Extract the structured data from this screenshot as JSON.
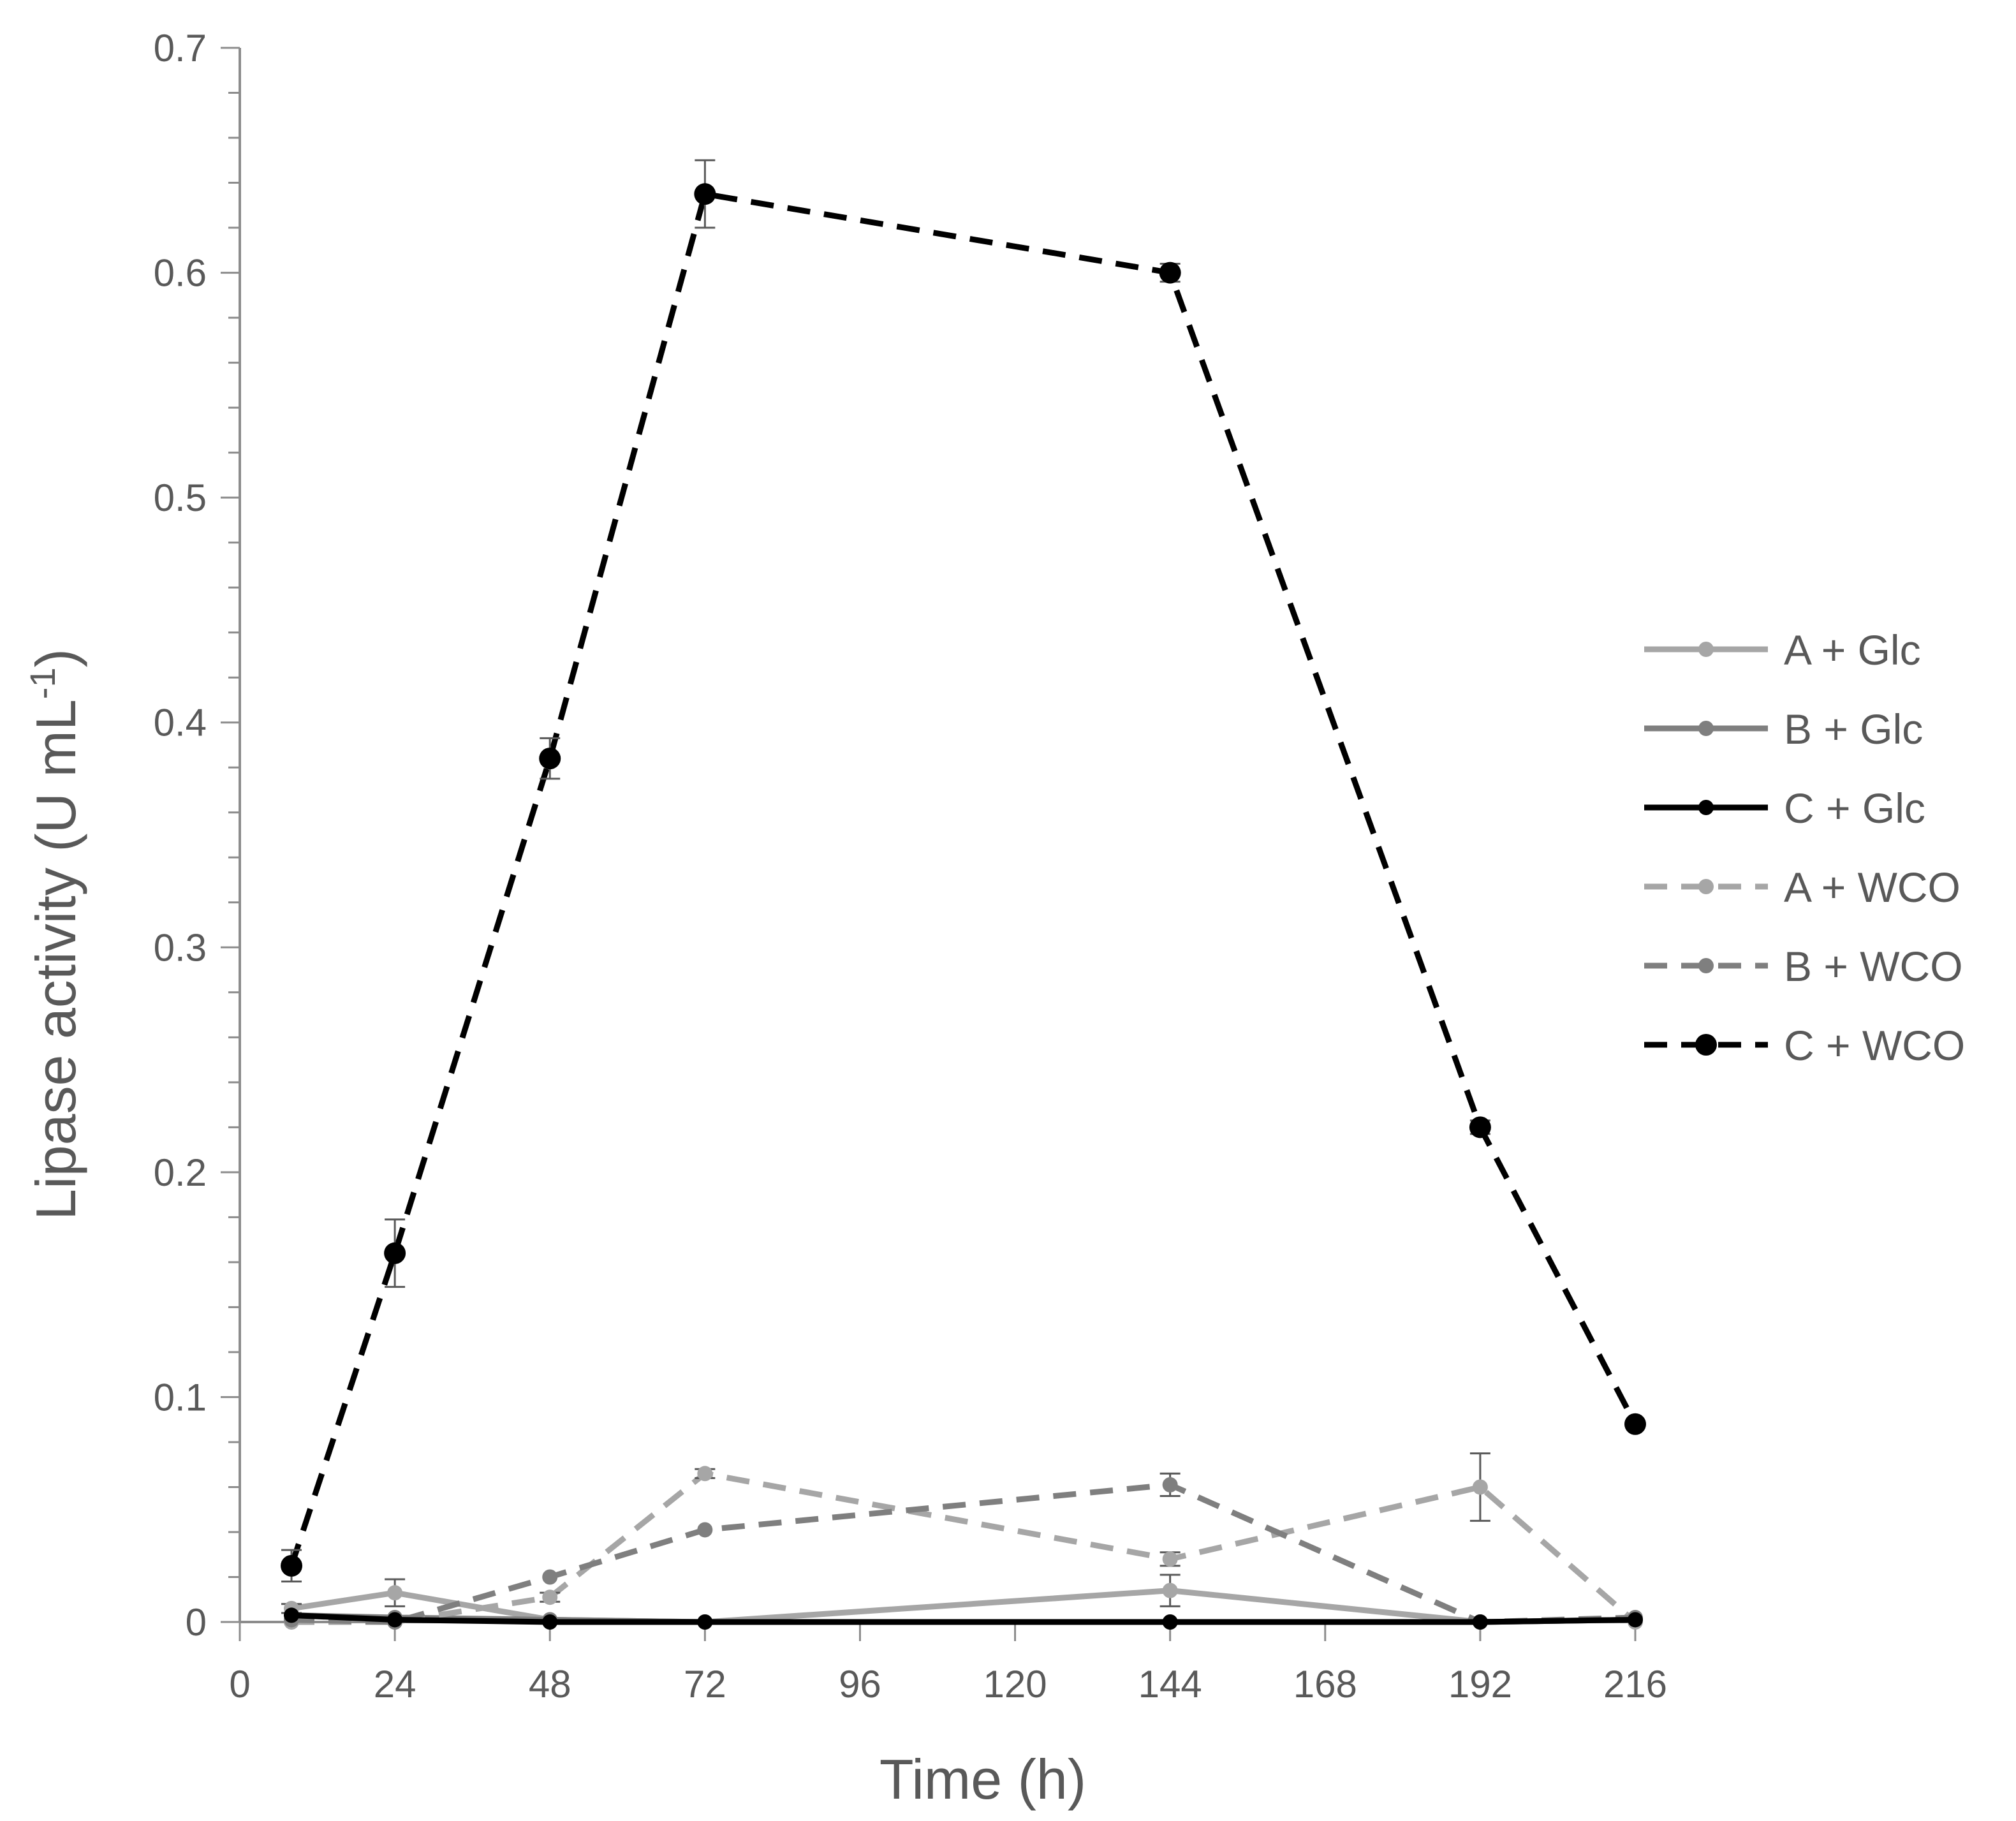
{
  "chart_data": {
    "type": "line",
    "title": "",
    "xlabel": "Time (h)",
    "ylabel": {
      "main": "Lipase activity (U mL",
      "sup": "-1",
      "close": ")"
    },
    "xlim": [
      0,
      216
    ],
    "ylim": [
      0,
      0.7
    ],
    "xticks": [
      "0",
      "24",
      "48",
      "72",
      "96",
      "120",
      "144",
      "168",
      "192",
      "216"
    ],
    "yticks": [
      "0",
      "0.1",
      "0.2",
      "0.3",
      "0.4",
      "0.5",
      "0.6",
      "0.7"
    ],
    "grid": false,
    "legend_position": "right",
    "x": [
      8,
      24,
      48,
      72,
      144,
      192,
      216
    ],
    "series": [
      {
        "name": "A + Glc",
        "color": "#a6a6a6",
        "dash": "solid",
        "marker": "small",
        "values": [
          0.006,
          0.013,
          0.001,
          0.0,
          0.014,
          0.0,
          0.001
        ],
        "errors": [
          0.002,
          0.006,
          0.0,
          0.0,
          0.007,
          0.0,
          0.0
        ]
      },
      {
        "name": "B + Glc",
        "color": "#7f7f7f",
        "dash": "solid",
        "marker": "small",
        "values": [
          0.003,
          0.002,
          0.001,
          0.0,
          0.0,
          0.0,
          0.001
        ],
        "errors": [
          0,
          0,
          0,
          0,
          0,
          0,
          0
        ]
      },
      {
        "name": "C + Glc",
        "color": "#000000",
        "dash": "solid",
        "marker": "small",
        "values": [
          0.003,
          0.001,
          0.0,
          0.0,
          0.0,
          0.0,
          0.001
        ],
        "errors": [
          0,
          0,
          0,
          0,
          0,
          0,
          0
        ]
      },
      {
        "name": "A + WCO",
        "color": "#a6a6a6",
        "dash": "dashed",
        "marker": "small",
        "values": [
          0.0,
          0.0,
          0.011,
          0.066,
          0.028,
          0.06,
          0.0
        ],
        "errors": [
          0,
          0,
          0.002,
          0.002,
          0.003,
          0.015,
          0
        ]
      },
      {
        "name": "B + WCO",
        "color": "#7f7f7f",
        "dash": "dashed",
        "marker": "small",
        "values": [
          0.001,
          0.0,
          0.02,
          0.041,
          0.061,
          0.0,
          0.002
        ],
        "errors": [
          0,
          0,
          0,
          0,
          0.005,
          0,
          0
        ]
      },
      {
        "name": "C + WCO",
        "color": "#000000",
        "dash": "dashed",
        "marker": "large",
        "values": [
          0.025,
          0.164,
          0.384,
          0.635,
          0.6,
          0.22,
          0.088
        ],
        "errors": [
          0.007,
          0.015,
          0.009,
          0.015,
          0.004,
          0.003,
          0.001
        ]
      }
    ]
  }
}
